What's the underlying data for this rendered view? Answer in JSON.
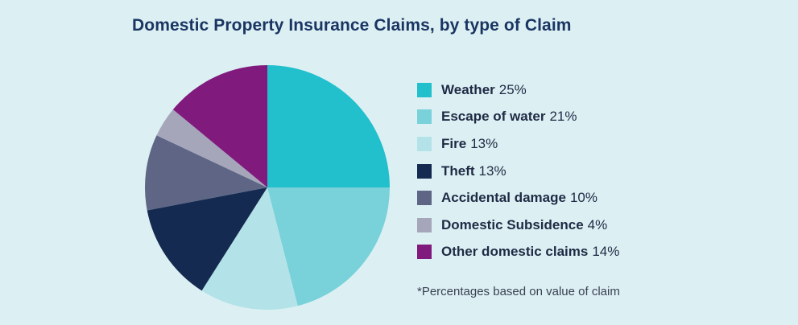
{
  "chart_data": {
    "type": "pie",
    "title": "Domestic Property Insurance Claims, by type of Claim",
    "slices": [
      {
        "label": "Weather",
        "value": 25,
        "value_label": "25%",
        "color": "#22bfcc"
      },
      {
        "label": "Escape of water",
        "value": 21,
        "value_label": "21%",
        "color": "#79d1da"
      },
      {
        "label": "Fire",
        "value": 13,
        "value_label": "13%",
        "color": "#b3e3e8"
      },
      {
        "label": "Theft",
        "value": 13,
        "value_label": "13%",
        "color": "#142a50"
      },
      {
        "label": "Accidental damage",
        "value": 10,
        "value_label": "10%",
        "color": "#5e6585"
      },
      {
        "label": "Domestic Subsidence",
        "value": 4,
        "value_label": "4%",
        "color": "#a6a6ba"
      },
      {
        "label": "Other domestic claims",
        "value": 14,
        "value_label": "14%",
        "color": "#801a7d"
      }
    ],
    "start_angle": "12 o'clock",
    "direction": "clockwise",
    "legend_position": "right",
    "footnote": "*Percentages based on value of claim"
  }
}
